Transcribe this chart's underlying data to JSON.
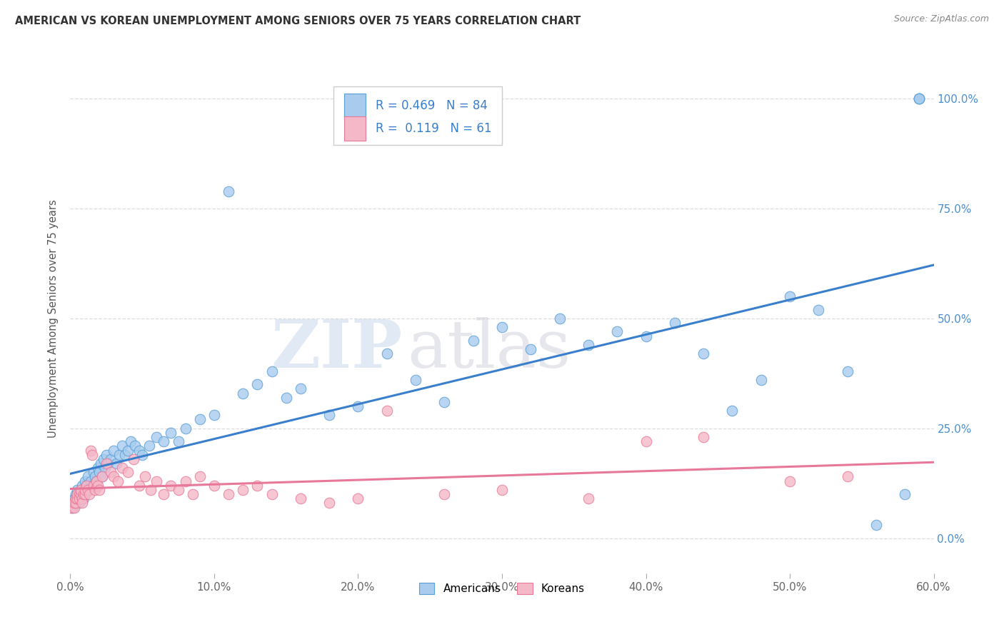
{
  "title": "AMERICAN VS KOREAN UNEMPLOYMENT AMONG SENIORS OVER 75 YEARS CORRELATION CHART",
  "source": "Source: ZipAtlas.com",
  "ylabel": "Unemployment Among Seniors over 75 years",
  "watermark_zip": "ZIP",
  "watermark_atlas": "atlas",
  "legend_label1": "Americans",
  "legend_label2": "Koreans",
  "r_american": 0.469,
  "n_american": 84,
  "r_korean": 0.119,
  "n_korean": 61,
  "american_fill": "#A8CBEE",
  "american_edge": "#5A9ED4",
  "korean_fill": "#F5B8C8",
  "korean_edge": "#E87A98",
  "american_line": "#3A7FCC",
  "korean_line": "#E8789A",
  "bg_color": "#FFFFFF",
  "xlim": [
    0.0,
    0.6
  ],
  "ylim": [
    -0.08,
    1.08
  ],
  "ytick_right_color": "#4A90D0",
  "grid_color": "#DDDDDD",
  "american_x": [
    0.001,
    0.002,
    0.002,
    0.003,
    0.003,
    0.004,
    0.004,
    0.005,
    0.005,
    0.006,
    0.006,
    0.007,
    0.007,
    0.008,
    0.008,
    0.009,
    0.009,
    0.01,
    0.01,
    0.011,
    0.012,
    0.013,
    0.014,
    0.015,
    0.016,
    0.017,
    0.018,
    0.019,
    0.02,
    0.021,
    0.022,
    0.023,
    0.024,
    0.025,
    0.026,
    0.028,
    0.03,
    0.032,
    0.034,
    0.036,
    0.038,
    0.04,
    0.042,
    0.045,
    0.048,
    0.05,
    0.055,
    0.06,
    0.065,
    0.07,
    0.075,
    0.08,
    0.09,
    0.1,
    0.11,
    0.12,
    0.13,
    0.14,
    0.15,
    0.16,
    0.18,
    0.2,
    0.22,
    0.24,
    0.26,
    0.28,
    0.3,
    0.32,
    0.34,
    0.36,
    0.38,
    0.4,
    0.42,
    0.44,
    0.46,
    0.48,
    0.5,
    0.52,
    0.54,
    0.56,
    0.58,
    0.59,
    0.59,
    0.59
  ],
  "american_y": [
    0.07,
    0.07,
    0.08,
    0.08,
    0.09,
    0.09,
    0.1,
    0.1,
    0.11,
    0.08,
    0.09,
    0.1,
    0.11,
    0.12,
    0.1,
    0.09,
    0.11,
    0.13,
    0.1,
    0.12,
    0.14,
    0.11,
    0.13,
    0.12,
    0.15,
    0.14,
    0.13,
    0.16,
    0.15,
    0.17,
    0.14,
    0.18,
    0.16,
    0.19,
    0.17,
    0.18,
    0.2,
    0.17,
    0.19,
    0.21,
    0.19,
    0.2,
    0.22,
    0.21,
    0.2,
    0.19,
    0.21,
    0.23,
    0.22,
    0.24,
    0.22,
    0.25,
    0.27,
    0.28,
    0.79,
    0.33,
    0.35,
    0.38,
    0.32,
    0.34,
    0.28,
    0.3,
    0.42,
    0.36,
    0.31,
    0.45,
    0.48,
    0.43,
    0.5,
    0.44,
    0.47,
    0.46,
    0.49,
    0.42,
    0.29,
    0.36,
    0.55,
    0.52,
    0.38,
    0.03,
    0.1,
    1.0,
    1.0,
    1.0
  ],
  "korean_x": [
    0.001,
    0.002,
    0.003,
    0.003,
    0.004,
    0.004,
    0.005,
    0.005,
    0.006,
    0.006,
    0.007,
    0.007,
    0.008,
    0.008,
    0.009,
    0.01,
    0.01,
    0.011,
    0.012,
    0.013,
    0.014,
    0.015,
    0.016,
    0.017,
    0.018,
    0.019,
    0.02,
    0.022,
    0.025,
    0.028,
    0.03,
    0.033,
    0.036,
    0.04,
    0.044,
    0.048,
    0.052,
    0.056,
    0.06,
    0.065,
    0.07,
    0.075,
    0.08,
    0.085,
    0.09,
    0.1,
    0.11,
    0.12,
    0.13,
    0.14,
    0.16,
    0.18,
    0.2,
    0.22,
    0.26,
    0.3,
    0.36,
    0.4,
    0.44,
    0.5,
    0.54
  ],
  "korean_y": [
    0.07,
    0.08,
    0.07,
    0.08,
    0.08,
    0.09,
    0.09,
    0.1,
    0.1,
    0.09,
    0.1,
    0.11,
    0.09,
    0.08,
    0.1,
    0.1,
    0.11,
    0.12,
    0.11,
    0.1,
    0.2,
    0.19,
    0.12,
    0.11,
    0.13,
    0.12,
    0.11,
    0.14,
    0.17,
    0.15,
    0.14,
    0.13,
    0.16,
    0.15,
    0.18,
    0.12,
    0.14,
    0.11,
    0.13,
    0.1,
    0.12,
    0.11,
    0.13,
    0.1,
    0.14,
    0.12,
    0.1,
    0.11,
    0.12,
    0.1,
    0.09,
    0.08,
    0.09,
    0.29,
    0.1,
    0.11,
    0.09,
    0.22,
    0.23,
    0.13,
    0.14
  ]
}
